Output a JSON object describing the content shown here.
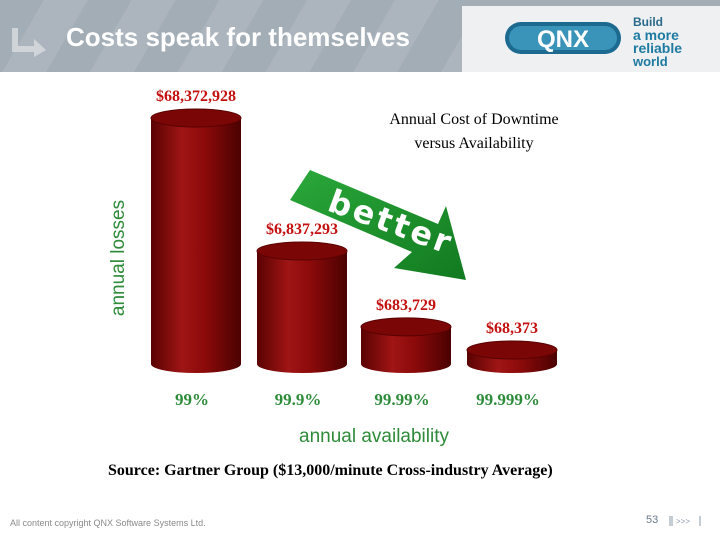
{
  "header": {
    "title": "Costs speak for themselves",
    "logo_text": "QNX",
    "tagline": [
      "Build",
      "a more",
      "reliable",
      "world"
    ],
    "icons": {
      "title_bullet": "corner-arrow-icon",
      "logo": "qnx-logo-icon"
    }
  },
  "chart_data": {
    "type": "bar",
    "title": "Annual Cost of Downtime versus Availability",
    "title_lines": [
      "Annual Cost of Downtime",
      "versus Availability"
    ],
    "xlabel": "annual availability",
    "ylabel": "annual losses",
    "categories": [
      "99%",
      "99.9%",
      "99.99%",
      "99.999%"
    ],
    "values": [
      68372928,
      6837293,
      683729,
      68373
    ],
    "value_labels": [
      "$68,372,928",
      "$6,837,293",
      "$683,729",
      "$68,373"
    ],
    "annotation": "better",
    "scale": "log",
    "grid": false,
    "colors": {
      "bar": "#8b0a0a",
      "bar_dark": "#5a0202",
      "label": "#c4100f",
      "axis_label": "#2e8b3a",
      "arrow": "#1e9a2e"
    }
  },
  "source": "Source: Gartner Group ($13,000/minute Cross-industry Average)",
  "footer": {
    "copyright": "All content copyright QNX Software Systems Ltd.",
    "page_number": "53",
    "nav": ">>>"
  }
}
